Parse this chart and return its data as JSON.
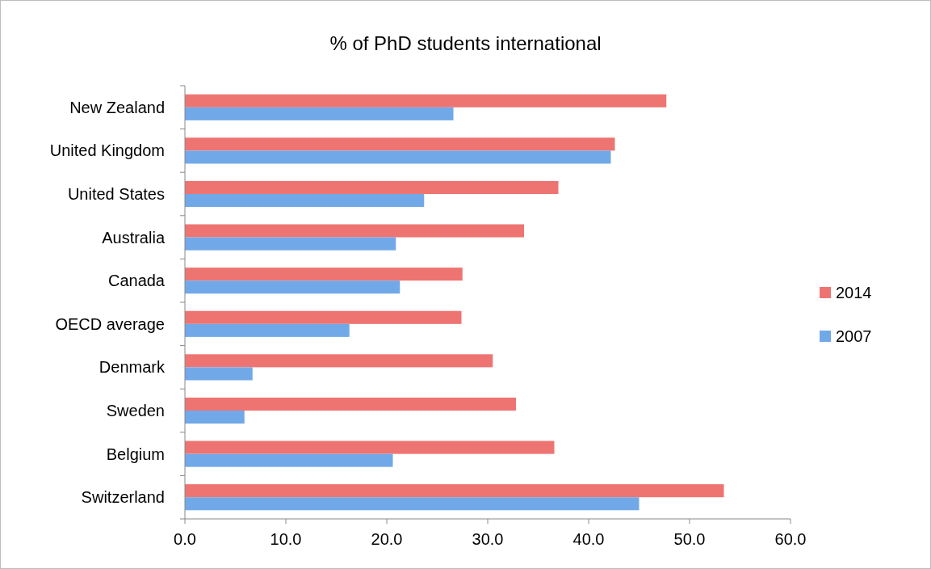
{
  "chart_data": {
    "type": "bar",
    "orientation": "horizontal",
    "title": "% of PhD students international",
    "categories": [
      "New Zealand",
      "United Kingdom",
      "United States",
      "Australia",
      "Canada",
      "OECD average",
      "Denmark",
      "Sweden",
      "Belgium",
      "Switzerland"
    ],
    "series": [
      {
        "name": "2014",
        "color": "#ee7472",
        "values": [
          47.7,
          42.6,
          37.0,
          33.6,
          27.5,
          27.4,
          30.5,
          32.8,
          36.6,
          53.4
        ]
      },
      {
        "name": "2007",
        "color": "#71a9e8",
        "values": [
          26.6,
          42.2,
          23.7,
          20.9,
          21.3,
          16.3,
          6.7,
          5.9,
          20.6,
          45.0
        ]
      }
    ],
    "xlim": [
      0,
      60
    ],
    "xticks": [
      {
        "value": 0,
        "label": "0.0"
      },
      {
        "value": 10,
        "label": "10.0"
      },
      {
        "value": 20,
        "label": "20.0"
      },
      {
        "value": 30,
        "label": "30.0"
      },
      {
        "value": 40,
        "label": "40.0"
      },
      {
        "value": 50,
        "label": "50.0"
      },
      {
        "value": 60,
        "label": "60.0"
      }
    ],
    "grid": false,
    "legend": "right"
  }
}
